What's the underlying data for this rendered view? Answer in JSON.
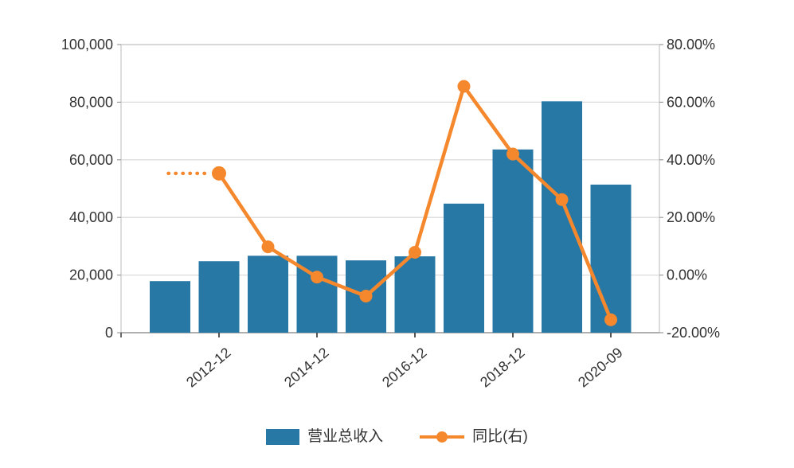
{
  "chart_data": {
    "type": "combo",
    "title": "",
    "series": [
      {
        "name": "营业总收入",
        "type": "bar",
        "axis": "left",
        "color": "#2878a6",
        "values": [
          17900,
          24800,
          26700,
          26700,
          25100,
          26500,
          44800,
          63600,
          80300,
          51400
        ]
      },
      {
        "name": "同比(右)",
        "type": "line",
        "axis": "right",
        "color": "#f5882d",
        "start_index": 1,
        "lead_in_dotted": true,
        "values": [
          35.3,
          9.8,
          -0.7,
          -7.3,
          7.9,
          65.5,
          42.0,
          26.2,
          -15.5
        ]
      }
    ],
    "x_axis": {
      "tick_labels": [
        "2012-12",
        "2014-12",
        "2016-12",
        "2018-12",
        "2020-09"
      ],
      "tick_positions": [
        1,
        3,
        5,
        7,
        9
      ]
    },
    "y_axis_left": {
      "min": 0,
      "max": 100000,
      "tick_labels": [
        "0",
        "20,000",
        "40,000",
        "60,000",
        "80,000",
        "100,000"
      ]
    },
    "y_axis_right": {
      "min": -20,
      "max": 80,
      "tick_labels": [
        "-20.00%",
        "0.00%",
        "20.00%",
        "40.00%",
        "60.00%",
        "80.00%"
      ]
    },
    "grid": true,
    "legend_position": "bottom"
  },
  "legend": {
    "items": [
      {
        "label": "营业总收入",
        "type": "bar"
      },
      {
        "label": "同比(右)",
        "type": "line"
      }
    ]
  },
  "colors": {
    "bar": "#2878a6",
    "line": "#f5882d",
    "grid": "#dcdcdc",
    "border": "#c9c9c9",
    "axis": "#9b9b9b",
    "tick": "#444444",
    "text": "#333333"
  }
}
